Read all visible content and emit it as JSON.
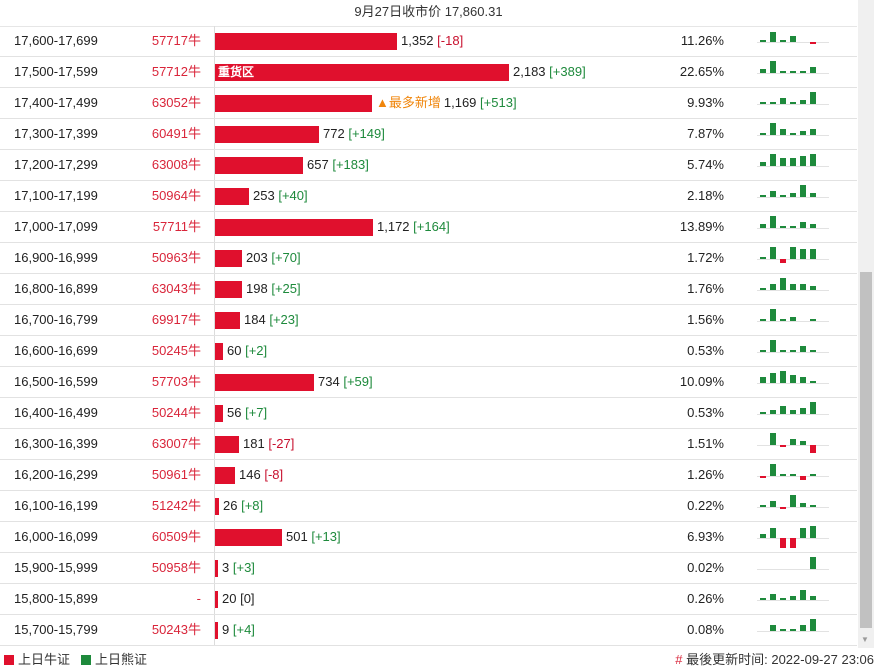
{
  "header": {
    "title": "9月27日收市价 17,860.31"
  },
  "colors": {
    "bull": "#e0102d",
    "bear": "#1e8a3c",
    "up_text": "#1e8a3c",
    "down_text": "#c8102e"
  },
  "rows": [
    {
      "range": "17,600-17,699",
      "code": "57717牛",
      "value": 1352,
      "value_text": "1,352",
      "change": "[-18]",
      "change_dir": "down",
      "pct": "11.26%",
      "spark": [
        1,
        5,
        1,
        3,
        0,
        -1,
        0
      ]
    },
    {
      "range": "17,500-17,599",
      "code": "57712牛",
      "value": 2183,
      "value_text": "2,183",
      "change": "[+389]",
      "change_dir": "up",
      "bar_label": "重货区",
      "pct": "22.65%",
      "spark": [
        2,
        6,
        1,
        1,
        1,
        3,
        0
      ]
    },
    {
      "range": "17,400-17,499",
      "code": "63052牛",
      "value": 1169,
      "value_text": "1,169",
      "change": "[+513]",
      "change_dir": "up",
      "note": "▲最多新增",
      "pct": "9.93%",
      "spark": [
        1,
        1,
        3,
        1,
        2,
        6,
        0
      ]
    },
    {
      "range": "17,300-17,399",
      "code": "60491牛",
      "value": 772,
      "value_text": "772",
      "change": "[+149]",
      "change_dir": "up",
      "pct": "7.87%",
      "spark": [
        1,
        6,
        3,
        1,
        2,
        3,
        0
      ]
    },
    {
      "range": "17,200-17,299",
      "code": "63008牛",
      "value": 657,
      "value_text": "657",
      "change": "[+183]",
      "change_dir": "up",
      "pct": "5.74%",
      "spark": [
        2,
        6,
        4,
        4,
        5,
        6,
        0
      ]
    },
    {
      "range": "17,100-17,199",
      "code": "50964牛",
      "value": 253,
      "value_text": "253",
      "change": "[+40]",
      "change_dir": "up",
      "pct": "2.18%",
      "spark": [
        1,
        3,
        1,
        2,
        6,
        2,
        0
      ]
    },
    {
      "range": "17,000-17,099",
      "code": "57711牛",
      "value": 1172,
      "value_text": "1,172",
      "change": "[+164]",
      "change_dir": "up",
      "pct": "13.89%",
      "spark": [
        2,
        6,
        1,
        1,
        3,
        2,
        0
      ]
    },
    {
      "range": "16,900-16,999",
      "code": "50963牛",
      "value": 203,
      "value_text": "203",
      "change": "[+70]",
      "change_dir": "up",
      "pct": "1.72%",
      "spark": [
        1,
        6,
        -2,
        6,
        5,
        5,
        0
      ]
    },
    {
      "range": "16,800-16,899",
      "code": "63043牛",
      "value": 198,
      "value_text": "198",
      "change": "[+25]",
      "change_dir": "up",
      "pct": "1.76%",
      "spark": [
        1,
        3,
        6,
        3,
        3,
        2,
        0
      ]
    },
    {
      "range": "16,700-16,799",
      "code": "69917牛",
      "value": 184,
      "value_text": "184",
      "change": "[+23]",
      "change_dir": "up",
      "pct": "1.56%",
      "spark": [
        1,
        6,
        1,
        2,
        0,
        1,
        0
      ]
    },
    {
      "range": "16,600-16,699",
      "code": "50245牛",
      "value": 60,
      "value_text": "60",
      "change": "[+2]",
      "change_dir": "up",
      "pct": "0.53%",
      "spark": [
        1,
        6,
        1,
        1,
        3,
        1,
        0
      ]
    },
    {
      "range": "16,500-16,599",
      "code": "57703牛",
      "value": 734,
      "value_text": "734",
      "change": "[+59]",
      "change_dir": "up",
      "pct": "10.09%",
      "spark": [
        3,
        5,
        6,
        4,
        3,
        1,
        0
      ]
    },
    {
      "range": "16,400-16,499",
      "code": "50244牛",
      "value": 56,
      "value_text": "56",
      "change": "[+7]",
      "change_dir": "up",
      "pct": "0.53%",
      "spark": [
        1,
        2,
        4,
        2,
        3,
        6,
        0
      ]
    },
    {
      "range": "16,300-16,399",
      "code": "63007牛",
      "value": 181,
      "value_text": "181",
      "change": "[-27]",
      "change_dir": "down",
      "pct": "1.51%",
      "spark": [
        0,
        6,
        -1,
        3,
        2,
        -4,
        0
      ]
    },
    {
      "range": "16,200-16,299",
      "code": "50961牛",
      "value": 146,
      "value_text": "146",
      "change": "[-8]",
      "change_dir": "down",
      "pct": "1.26%",
      "spark": [
        -1,
        6,
        1,
        1,
        -2,
        1,
        0
      ]
    },
    {
      "range": "16,100-16,199",
      "code": "51242牛",
      "value": 26,
      "value_text": "26",
      "change": "[+8]",
      "change_dir": "up",
      "pct": "0.22%",
      "spark": [
        1,
        3,
        -1,
        6,
        2,
        1,
        0
      ]
    },
    {
      "range": "16,000-16,099",
      "code": "60509牛",
      "value": 501,
      "value_text": "501",
      "change": "[+13]",
      "change_dir": "up",
      "pct": "6.93%",
      "spark": [
        2,
        5,
        -5,
        -5,
        5,
        6,
        0
      ]
    },
    {
      "range": "15,900-15,999",
      "code": "50958牛",
      "value": 3,
      "value_text": "3",
      "change": "[+3]",
      "change_dir": "up",
      "pct": "0.02%",
      "spark": [
        0,
        0,
        0,
        0,
        0,
        6,
        0
      ]
    },
    {
      "range": "15,800-15,899",
      "code": "-",
      "value": 20,
      "value_text": "20",
      "change": "[0]",
      "change_dir": "zero",
      "pct": "0.26%",
      "spark": [
        1,
        3,
        1,
        2,
        5,
        2,
        0
      ]
    },
    {
      "range": "15,700-15,799",
      "code": "50243牛",
      "value": 9,
      "value_text": "9",
      "change": "[+4]",
      "change_dir": "up",
      "pct": "0.08%",
      "spark": [
        0,
        3,
        1,
        1,
        3,
        6,
        0
      ]
    }
  ],
  "footer": {
    "legend_bull": "上日牛证",
    "legend_bear": "上日熊证",
    "update_mark": "#",
    "update_label": "最後更新时间: 2022-09-27 23:06"
  }
}
